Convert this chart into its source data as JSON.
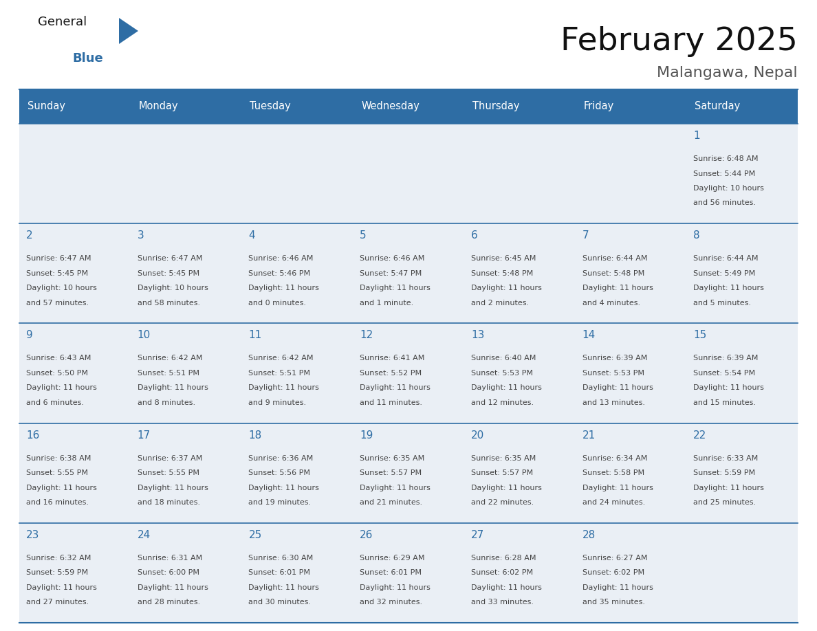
{
  "title": "February 2025",
  "subtitle": "Malangawa, Nepal",
  "days_of_week": [
    "Sunday",
    "Monday",
    "Tuesday",
    "Wednesday",
    "Thursday",
    "Friday",
    "Saturday"
  ],
  "header_bg": "#2E6DA4",
  "header_text": "#FFFFFF",
  "cell_bg": "#EAEFF5",
  "border_color": "#2E6DA4",
  "day_number_color": "#2E6DA4",
  "text_color": "#444444",
  "logo_general_color": "#1a1a1a",
  "logo_blue_color": "#2E6DA4",
  "logo_triangle_color": "#2E6DA4",
  "calendar_data": [
    [
      null,
      null,
      null,
      null,
      null,
      null,
      {
        "day": "1",
        "sunrise": "6:48 AM",
        "sunset": "5:44 PM",
        "daylight_line1": "10 hours",
        "daylight_line2": "and 56 minutes."
      }
    ],
    [
      {
        "day": "2",
        "sunrise": "6:47 AM",
        "sunset": "5:45 PM",
        "daylight_line1": "10 hours",
        "daylight_line2": "and 57 minutes."
      },
      {
        "day": "3",
        "sunrise": "6:47 AM",
        "sunset": "5:45 PM",
        "daylight_line1": "10 hours",
        "daylight_line2": "and 58 minutes."
      },
      {
        "day": "4",
        "sunrise": "6:46 AM",
        "sunset": "5:46 PM",
        "daylight_line1": "11 hours",
        "daylight_line2": "and 0 minutes."
      },
      {
        "day": "5",
        "sunrise": "6:46 AM",
        "sunset": "5:47 PM",
        "daylight_line1": "11 hours",
        "daylight_line2": "and 1 minute."
      },
      {
        "day": "6",
        "sunrise": "6:45 AM",
        "sunset": "5:48 PM",
        "daylight_line1": "11 hours",
        "daylight_line2": "and 2 minutes."
      },
      {
        "day": "7",
        "sunrise": "6:44 AM",
        "sunset": "5:48 PM",
        "daylight_line1": "11 hours",
        "daylight_line2": "and 4 minutes."
      },
      {
        "day": "8",
        "sunrise": "6:44 AM",
        "sunset": "5:49 PM",
        "daylight_line1": "11 hours",
        "daylight_line2": "and 5 minutes."
      }
    ],
    [
      {
        "day": "9",
        "sunrise": "6:43 AM",
        "sunset": "5:50 PM",
        "daylight_line1": "11 hours",
        "daylight_line2": "and 6 minutes."
      },
      {
        "day": "10",
        "sunrise": "6:42 AM",
        "sunset": "5:51 PM",
        "daylight_line1": "11 hours",
        "daylight_line2": "and 8 minutes."
      },
      {
        "day": "11",
        "sunrise": "6:42 AM",
        "sunset": "5:51 PM",
        "daylight_line1": "11 hours",
        "daylight_line2": "and 9 minutes."
      },
      {
        "day": "12",
        "sunrise": "6:41 AM",
        "sunset": "5:52 PM",
        "daylight_line1": "11 hours",
        "daylight_line2": "and 11 minutes."
      },
      {
        "day": "13",
        "sunrise": "6:40 AM",
        "sunset": "5:53 PM",
        "daylight_line1": "11 hours",
        "daylight_line2": "and 12 minutes."
      },
      {
        "day": "14",
        "sunrise": "6:39 AM",
        "sunset": "5:53 PM",
        "daylight_line1": "11 hours",
        "daylight_line2": "and 13 minutes."
      },
      {
        "day": "15",
        "sunrise": "6:39 AM",
        "sunset": "5:54 PM",
        "daylight_line1": "11 hours",
        "daylight_line2": "and 15 minutes."
      }
    ],
    [
      {
        "day": "16",
        "sunrise": "6:38 AM",
        "sunset": "5:55 PM",
        "daylight_line1": "11 hours",
        "daylight_line2": "and 16 minutes."
      },
      {
        "day": "17",
        "sunrise": "6:37 AM",
        "sunset": "5:55 PM",
        "daylight_line1": "11 hours",
        "daylight_line2": "and 18 minutes."
      },
      {
        "day": "18",
        "sunrise": "6:36 AM",
        "sunset": "5:56 PM",
        "daylight_line1": "11 hours",
        "daylight_line2": "and 19 minutes."
      },
      {
        "day": "19",
        "sunrise": "6:35 AM",
        "sunset": "5:57 PM",
        "daylight_line1": "11 hours",
        "daylight_line2": "and 21 minutes."
      },
      {
        "day": "20",
        "sunrise": "6:35 AM",
        "sunset": "5:57 PM",
        "daylight_line1": "11 hours",
        "daylight_line2": "and 22 minutes."
      },
      {
        "day": "21",
        "sunrise": "6:34 AM",
        "sunset": "5:58 PM",
        "daylight_line1": "11 hours",
        "daylight_line2": "and 24 minutes."
      },
      {
        "day": "22",
        "sunrise": "6:33 AM",
        "sunset": "5:59 PM",
        "daylight_line1": "11 hours",
        "daylight_line2": "and 25 minutes."
      }
    ],
    [
      {
        "day": "23",
        "sunrise": "6:32 AM",
        "sunset": "5:59 PM",
        "daylight_line1": "11 hours",
        "daylight_line2": "and 27 minutes."
      },
      {
        "day": "24",
        "sunrise": "6:31 AM",
        "sunset": "6:00 PM",
        "daylight_line1": "11 hours",
        "daylight_line2": "and 28 minutes."
      },
      {
        "day": "25",
        "sunrise": "6:30 AM",
        "sunset": "6:01 PM",
        "daylight_line1": "11 hours",
        "daylight_line2": "and 30 minutes."
      },
      {
        "day": "26",
        "sunrise": "6:29 AM",
        "sunset": "6:01 PM",
        "daylight_line1": "11 hours",
        "daylight_line2": "and 32 minutes."
      },
      {
        "day": "27",
        "sunrise": "6:28 AM",
        "sunset": "6:02 PM",
        "daylight_line1": "11 hours",
        "daylight_line2": "and 33 minutes."
      },
      {
        "day": "28",
        "sunrise": "6:27 AM",
        "sunset": "6:02 PM",
        "daylight_line1": "11 hours",
        "daylight_line2": "and 35 minutes."
      },
      null
    ]
  ]
}
